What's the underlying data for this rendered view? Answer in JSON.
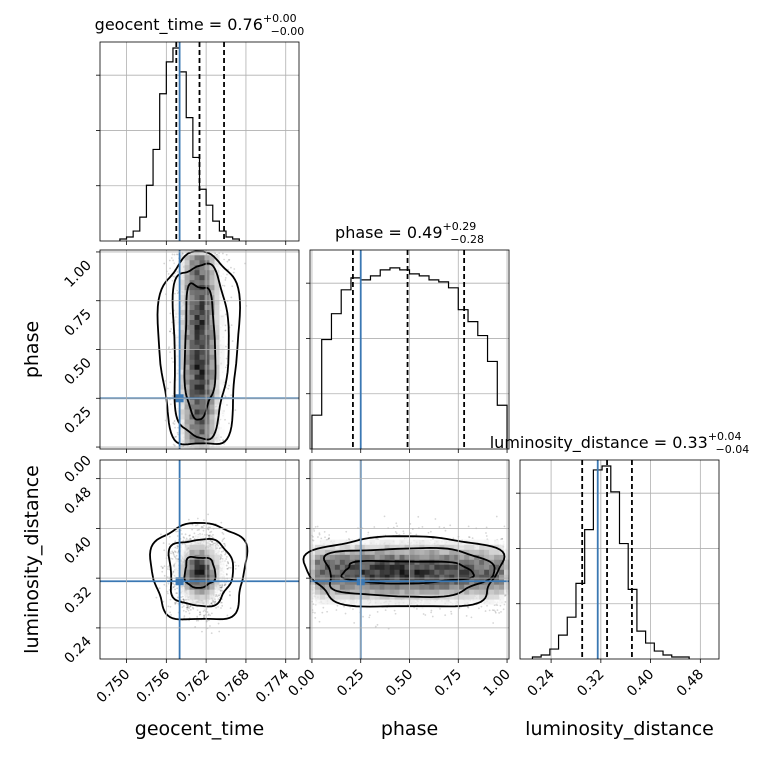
{
  "figure": {
    "type": "corner",
    "grid": true,
    "truth_color": "#3b78b3",
    "hist_color": "#000000",
    "params": [
      {
        "key": "geocent_time",
        "label": "geocent_time",
        "title_name": "geocent_time",
        "title_value": "0.76",
        "title_plus": "+0.00",
        "title_minus": "−0.00",
        "lim": [
          0.746,
          0.776
        ],
        "ticks": [
          0.75,
          0.756,
          0.762,
          0.768,
          0.774
        ],
        "tick_labels": [
          "0.750",
          "0.756",
          "0.762",
          "0.768",
          "0.774"
        ],
        "quantiles": [
          0.7575,
          0.761,
          0.7647
        ],
        "truth": 0.758
      },
      {
        "key": "phase",
        "label": "phase",
        "title_name": "phase",
        "title_value": "0.49",
        "title_plus": "+0.29",
        "title_minus": "−0.28",
        "lim": [
          -0.01,
          1.01
        ],
        "ticks": [
          0.0,
          0.25,
          0.5,
          0.75,
          1.0
        ],
        "tick_labels": [
          "0.00",
          "0.25",
          "0.50",
          "0.75",
          "1.00"
        ],
        "quantiles": [
          0.21,
          0.49,
          0.78
        ],
        "truth": 0.25
      },
      {
        "key": "luminosity_distance",
        "label": "luminosity_distance",
        "title_name": "luminosity_distance",
        "title_value": "0.33",
        "title_plus": "+0.04",
        "title_minus": "−0.04",
        "lim": [
          0.19,
          0.51
        ],
        "ticks": [
          0.24,
          0.32,
          0.4,
          0.48
        ],
        "tick_labels": [
          "0.24",
          "0.32",
          "0.40",
          "0.48"
        ],
        "quantiles": [
          0.29,
          0.33,
          0.37
        ],
        "truth": 0.315
      }
    ]
  },
  "chart_data": [
    {
      "type": "bar",
      "title": "geocent_time = 0.76 +0.00 −0.00",
      "xlabel": "geocent_time",
      "bin_edges_start": 0.749,
      "bin_width": 0.001,
      "values": [
        1,
        2,
        5,
        12,
        28,
        46,
        74,
        90,
        97,
        85,
        62,
        42,
        26,
        18,
        10,
        5,
        2,
        1
      ],
      "xlim": [
        0.746,
        0.776
      ],
      "ylim": [
        0,
        100
      ]
    },
    {
      "type": "bar",
      "title": "phase = 0.49 +0.29 −0.28",
      "xlabel": "phase",
      "bin_edges_start": 0.0,
      "bin_width": 0.05,
      "values": [
        17,
        55,
        68,
        80,
        86,
        85,
        87,
        90,
        91,
        90,
        88,
        87,
        85,
        84,
        81,
        70,
        64,
        57,
        44,
        22
      ],
      "xlim": [
        -0.01,
        1.01
      ],
      "ylim": [
        0,
        100
      ]
    },
    {
      "type": "bar",
      "title": "luminosity_distance = 0.33 +0.04 −0.04",
      "xlabel": "luminosity_distance",
      "bin_edges_start": 0.21,
      "bin_width": 0.014,
      "values": [
        1,
        2,
        5,
        12,
        21,
        38,
        65,
        95,
        97,
        84,
        58,
        35,
        14,
        8,
        4,
        2,
        1,
        1
      ],
      "xlim": [
        0.19,
        0.51
      ],
      "ylim": [
        0,
        100
      ]
    },
    {
      "type": "heatmap",
      "x": "geocent_time",
      "y": "phase",
      "x_center": 0.761,
      "x_sd": 0.0018,
      "y_range": [
        0,
        1
      ],
      "levels": [
        0.39,
        0.86,
        0.99
      ],
      "truth": [
        0.758,
        0.25
      ]
    },
    {
      "type": "heatmap",
      "x": "geocent_time",
      "y": "luminosity_distance",
      "x_center": 0.761,
      "x_sd": 0.0018,
      "y_center": 0.33,
      "y_sd": 0.028,
      "levels": [
        0.39,
        0.86,
        0.99
      ],
      "truth": [
        0.758,
        0.315
      ]
    },
    {
      "type": "heatmap",
      "x": "phase",
      "y": "luminosity_distance",
      "x_range": [
        0,
        1
      ],
      "y_center": 0.33,
      "y_sd": 0.028,
      "levels": [
        0.39,
        0.86,
        0.99
      ],
      "truth": [
        0.25,
        0.315
      ]
    }
  ]
}
